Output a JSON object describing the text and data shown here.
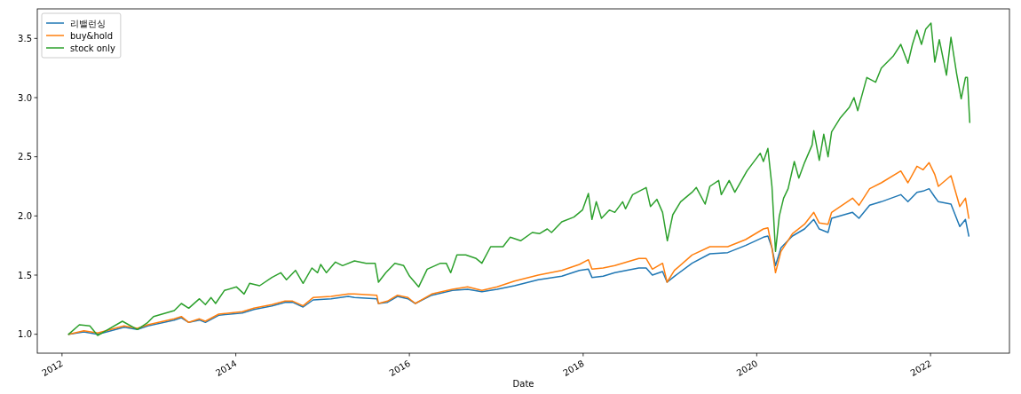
{
  "chart_data": {
    "type": "line",
    "xlabel": "Date",
    "legend": "top left",
    "grid": false,
    "line_style": "solid",
    "xlim": [
      "2011-09-19",
      "2022-11-29"
    ],
    "xticks": [
      {
        "value": "2012-01-01",
        "label": "2012"
      },
      {
        "value": "2014-01-01",
        "label": "2014"
      },
      {
        "value": "2016-01-01",
        "label": "2016"
      },
      {
        "value": "2018-01-01",
        "label": "2018"
      },
      {
        "value": "2020-01-01",
        "label": "2020"
      },
      {
        "value": "2022-01-01",
        "label": "2022"
      }
    ],
    "ylim": [
      0.84,
      3.75
    ],
    "yticks": [
      {
        "value": 1,
        "label": "1.0"
      },
      {
        "value": 1.5,
        "label": "1.5"
      },
      {
        "value": 2,
        "label": "2.0"
      },
      {
        "value": 2.5,
        "label": "2.5"
      },
      {
        "value": 3,
        "label": "3.0"
      },
      {
        "value": 3.5,
        "label": "3.5"
      }
    ],
    "series": [
      {
        "name": "리밸런싱",
        "color": "#1f77b4",
        "x": [
          "2012-01-29",
          "2012-04-02",
          "2012-05-30",
          "2012-09-18",
          "2012-11-13",
          "2012-12-27",
          "2013-04-17",
          "2013-05-17",
          "2013-06-17",
          "2013-08-01",
          "2013-08-26",
          "2013-10-21",
          "2014-01-28",
          "2014-03-18",
          "2014-06-02",
          "2014-07-27",
          "2014-08-28",
          "2014-10-11",
          "2014-11-22",
          "2015-02-06",
          "2015-04-19",
          "2015-05-15",
          "2015-08-17",
          "2015-08-24",
          "2015-10-01",
          "2015-11-12",
          "2015-12-26",
          "2016-01-26",
          "2016-04-04",
          "2016-06-30",
          "2016-09-02",
          "2016-11-01",
          "2017-01-04",
          "2017-03-18",
          "2017-06-26",
          "2017-10-03",
          "2017-12-16",
          "2018-01-23",
          "2018-02-07",
          "2018-03-26",
          "2018-05-14",
          "2018-08-23",
          "2018-09-23",
          "2018-10-19",
          "2018-12-01",
          "2018-12-20",
          "2019-01-20",
          "2019-04-04",
          "2019-06-18",
          "2019-09-01",
          "2019-11-15",
          "2020-01-29",
          "2020-02-17",
          "2020-03-05",
          "2020-03-20",
          "2020-04-12",
          "2020-05-30",
          "2020-07-20",
          "2020-08-28",
          "2020-09-20",
          "2020-10-27",
          "2020-11-11",
          "2021-02-07",
          "2021-03-06",
          "2021-04-20",
          "2021-06-08",
          "2021-08-29",
          "2021-09-28",
          "2021-11-05",
          "2021-12-01",
          "2021-12-26",
          "2022-01-19",
          "2022-02-03",
          "2022-03-28",
          "2022-05-04",
          "2022-05-28",
          "2022-06-11"
        ],
        "values": [
          1.0,
          1.02,
          1.0,
          1.06,
          1.04,
          1.07,
          1.12,
          1.14,
          1.1,
          1.12,
          1.1,
          1.16,
          1.18,
          1.21,
          1.24,
          1.27,
          1.27,
          1.23,
          1.29,
          1.3,
          1.32,
          1.31,
          1.3,
          1.26,
          1.27,
          1.32,
          1.3,
          1.26,
          1.33,
          1.37,
          1.38,
          1.36,
          1.38,
          1.41,
          1.46,
          1.49,
          1.54,
          1.55,
          1.48,
          1.49,
          1.52,
          1.56,
          1.56,
          1.5,
          1.53,
          1.44,
          1.49,
          1.6,
          1.68,
          1.69,
          1.75,
          1.82,
          1.83,
          1.73,
          1.58,
          1.73,
          1.83,
          1.89,
          1.97,
          1.89,
          1.86,
          1.98,
          2.03,
          1.98,
          2.09,
          2.12,
          2.18,
          2.12,
          2.2,
          2.21,
          2.23,
          2.16,
          2.12,
          2.1,
          1.91,
          1.97,
          1.83
        ]
      },
      {
        "name": "buy&hold",
        "color": "#ff7f0e",
        "x": [
          "2012-01-29",
          "2012-04-02",
          "2012-05-30",
          "2012-09-18",
          "2012-11-13",
          "2012-12-27",
          "2013-04-17",
          "2013-05-17",
          "2013-06-17",
          "2013-08-01",
          "2013-08-26",
          "2013-10-21",
          "2014-01-28",
          "2014-03-18",
          "2014-06-02",
          "2014-07-27",
          "2014-08-28",
          "2014-10-11",
          "2014-11-22",
          "2015-02-06",
          "2015-04-19",
          "2015-05-15",
          "2015-08-17",
          "2015-08-24",
          "2015-10-01",
          "2015-11-12",
          "2015-12-26",
          "2016-01-26",
          "2016-04-04",
          "2016-06-30",
          "2016-09-02",
          "2016-11-01",
          "2017-01-04",
          "2017-03-18",
          "2017-06-26",
          "2017-10-03",
          "2017-12-16",
          "2018-01-23",
          "2018-02-07",
          "2018-03-26",
          "2018-05-14",
          "2018-08-23",
          "2018-09-23",
          "2018-10-19",
          "2018-12-01",
          "2018-12-20",
          "2019-01-20",
          "2019-04-04",
          "2019-06-18",
          "2019-09-01",
          "2019-11-15",
          "2020-01-29",
          "2020-02-17",
          "2020-03-05",
          "2020-03-20",
          "2020-04-12",
          "2020-05-30",
          "2020-07-20",
          "2020-08-28",
          "2020-09-20",
          "2020-10-27",
          "2020-11-11",
          "2021-02-07",
          "2021-03-06",
          "2021-04-20",
          "2021-06-08",
          "2021-08-29",
          "2021-09-28",
          "2021-11-05",
          "2021-12-01",
          "2021-12-26",
          "2022-01-19",
          "2022-02-03",
          "2022-03-28",
          "2022-05-04",
          "2022-05-28",
          "2022-06-11"
        ],
        "values": [
          1.0,
          1.03,
          1.01,
          1.07,
          1.05,
          1.08,
          1.13,
          1.15,
          1.1,
          1.13,
          1.11,
          1.17,
          1.19,
          1.22,
          1.25,
          1.28,
          1.28,
          1.24,
          1.31,
          1.32,
          1.34,
          1.34,
          1.33,
          1.26,
          1.28,
          1.33,
          1.31,
          1.26,
          1.34,
          1.38,
          1.4,
          1.37,
          1.4,
          1.45,
          1.5,
          1.54,
          1.59,
          1.63,
          1.55,
          1.56,
          1.58,
          1.64,
          1.64,
          1.55,
          1.6,
          1.44,
          1.54,
          1.67,
          1.74,
          1.74,
          1.8,
          1.89,
          1.9,
          1.73,
          1.52,
          1.7,
          1.85,
          1.93,
          2.03,
          1.94,
          1.93,
          2.03,
          2.15,
          2.09,
          2.23,
          2.28,
          2.38,
          2.28,
          2.42,
          2.39,
          2.45,
          2.35,
          2.25,
          2.34,
          2.08,
          2.15,
          1.98
        ]
      },
      {
        "name": "stock only",
        "color": "#2ca02c",
        "x": [
          "2012-01-29",
          "2012-03-14",
          "2012-04-27",
          "2012-05-30",
          "2012-07-04",
          "2012-09-11",
          "2012-11-13",
          "2012-12-27",
          "2013-01-20",
          "2013-04-17",
          "2013-05-17",
          "2013-06-17",
          "2013-08-01",
          "2013-08-26",
          "2013-09-19",
          "2013-10-08",
          "2013-11-14",
          "2014-01-04",
          "2014-02-05",
          "2014-02-28",
          "2014-04-11",
          "2014-06-02",
          "2014-07-09",
          "2014-08-02",
          "2014-09-09",
          "2014-10-11",
          "2014-11-17",
          "2014-12-11",
          "2014-12-24",
          "2015-01-17",
          "2015-02-24",
          "2015-03-26",
          "2015-05-15",
          "2015-07-03",
          "2015-08-10",
          "2015-08-24",
          "2015-09-24",
          "2015-11-01",
          "2015-12-08",
          "2016-01-02",
          "2016-02-09",
          "2016-03-16",
          "2016-05-11",
          "2016-06-04",
          "2016-06-23",
          "2016-07-19",
          "2016-08-25",
          "2016-10-08",
          "2016-11-01",
          "2016-12-08",
          "2017-01-29",
          "2017-02-28",
          "2017-04-13",
          "2017-06-01",
          "2017-07-01",
          "2017-08-03",
          "2017-08-21",
          "2017-10-03",
          "2017-11-23",
          "2017-12-29",
          "2018-01-23",
          "2018-02-07",
          "2018-02-25",
          "2018-03-19",
          "2018-04-21",
          "2018-05-14",
          "2018-06-16",
          "2018-06-28",
          "2018-07-28",
          "2018-09-23",
          "2018-10-11",
          "2018-11-07",
          "2018-12-01",
          "2018-12-21",
          "2019-01-13",
          "2019-02-15",
          "2019-04-04",
          "2019-04-22",
          "2019-05-29",
          "2019-06-18",
          "2019-07-25",
          "2019-08-05",
          "2019-09-07",
          "2019-10-01",
          "2019-11-21",
          "2020-01-16",
          "2020-01-29",
          "2020-02-17",
          "2020-03-05",
          "2020-03-20",
          "2020-04-05",
          "2020-04-23",
          "2020-05-12",
          "2020-06-07",
          "2020-06-26",
          "2020-07-20",
          "2020-08-21",
          "2020-08-28",
          "2020-09-20",
          "2020-10-09",
          "2020-10-27",
          "2020-11-11",
          "2020-12-18",
          "2021-01-25",
          "2021-02-13",
          "2021-03-01",
          "2021-04-08",
          "2021-05-15",
          "2021-06-08",
          "2021-07-28",
          "2021-08-29",
          "2021-09-28",
          "2021-10-17",
          "2021-11-05",
          "2021-11-24",
          "2021-12-12",
          "2022-01-03",
          "2022-01-19",
          "2022-02-07",
          "2022-03-09",
          "2022-03-28",
          "2022-04-21",
          "2022-05-10",
          "2022-05-28",
          "2022-06-05",
          "2022-06-15"
        ],
        "values": [
          1.0,
          1.08,
          1.07,
          0.99,
          1.03,
          1.11,
          1.04,
          1.1,
          1.15,
          1.2,
          1.26,
          1.22,
          1.3,
          1.25,
          1.31,
          1.26,
          1.37,
          1.4,
          1.34,
          1.43,
          1.41,
          1.48,
          1.52,
          1.46,
          1.54,
          1.43,
          1.56,
          1.52,
          1.59,
          1.52,
          1.61,
          1.58,
          1.62,
          1.6,
          1.6,
          1.44,
          1.52,
          1.6,
          1.58,
          1.49,
          1.4,
          1.55,
          1.6,
          1.6,
          1.52,
          1.67,
          1.67,
          1.64,
          1.6,
          1.74,
          1.74,
          1.82,
          1.79,
          1.86,
          1.85,
          1.89,
          1.86,
          1.95,
          1.99,
          2.05,
          2.19,
          1.97,
          2.12,
          1.98,
          2.05,
          2.03,
          2.12,
          2.06,
          2.18,
          2.24,
          2.08,
          2.14,
          2.03,
          1.79,
          2.01,
          2.12,
          2.2,
          2.24,
          2.1,
          2.25,
          2.3,
          2.18,
          2.3,
          2.2,
          2.38,
          2.53,
          2.46,
          2.57,
          2.25,
          1.7,
          2.0,
          2.15,
          2.23,
          2.46,
          2.32,
          2.45,
          2.6,
          2.72,
          2.47,
          2.69,
          2.5,
          2.71,
          2.83,
          2.92,
          3.0,
          2.89,
          3.17,
          3.13,
          3.25,
          3.35,
          3.45,
          3.29,
          3.45,
          3.57,
          3.45,
          3.58,
          3.63,
          3.3,
          3.49,
          3.19,
          3.51,
          3.2,
          2.99,
          3.17,
          3.17,
          2.79
        ]
      }
    ]
  }
}
